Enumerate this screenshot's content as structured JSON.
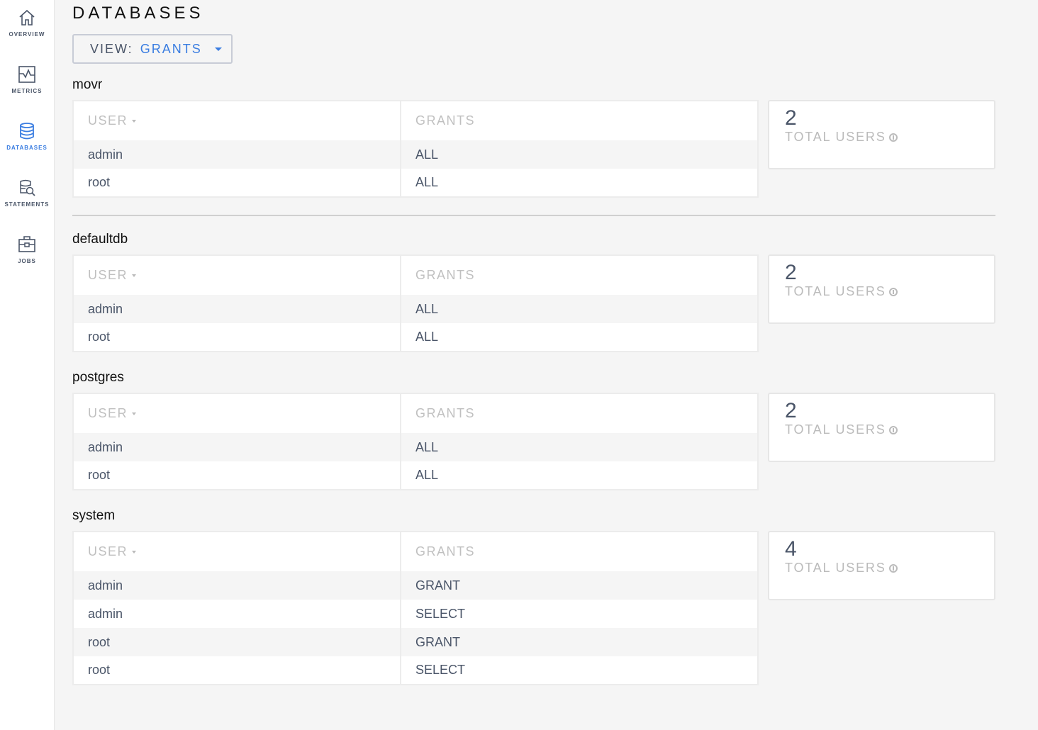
{
  "sidebar": {
    "items": [
      {
        "label": "OVERVIEW",
        "icon": "home-icon"
      },
      {
        "label": "METRICS",
        "icon": "metrics-icon"
      },
      {
        "label": "DATABASES",
        "icon": "database-icon",
        "active": true
      },
      {
        "label": "STATEMENTS",
        "icon": "statements-icon"
      },
      {
        "label": "JOBS",
        "icon": "jobs-icon"
      }
    ]
  },
  "header": {
    "title": "DATABASES",
    "view_label": "VIEW:",
    "view_value": "GRANTS"
  },
  "colors": {
    "accent": "#3a7de1",
    "text": "#4a5568"
  },
  "columns": {
    "user": "USER",
    "grants": "GRANTS"
  },
  "summary_label": "TOTAL USERS",
  "databases": [
    {
      "name": "movr",
      "total_users": "2",
      "rows": [
        [
          "admin",
          "ALL"
        ],
        [
          "root",
          "ALL"
        ]
      ]
    },
    {
      "name": "defaultdb",
      "total_users": "2",
      "rows": [
        [
          "admin",
          "ALL"
        ],
        [
          "root",
          "ALL"
        ]
      ]
    },
    {
      "name": "postgres",
      "total_users": "2",
      "rows": [
        [
          "admin",
          "ALL"
        ],
        [
          "root",
          "ALL"
        ]
      ]
    },
    {
      "name": "system",
      "total_users": "4",
      "rows": [
        [
          "admin",
          "GRANT"
        ],
        [
          "admin",
          "SELECT"
        ],
        [
          "root",
          "GRANT"
        ],
        [
          "root",
          "SELECT"
        ]
      ]
    }
  ]
}
